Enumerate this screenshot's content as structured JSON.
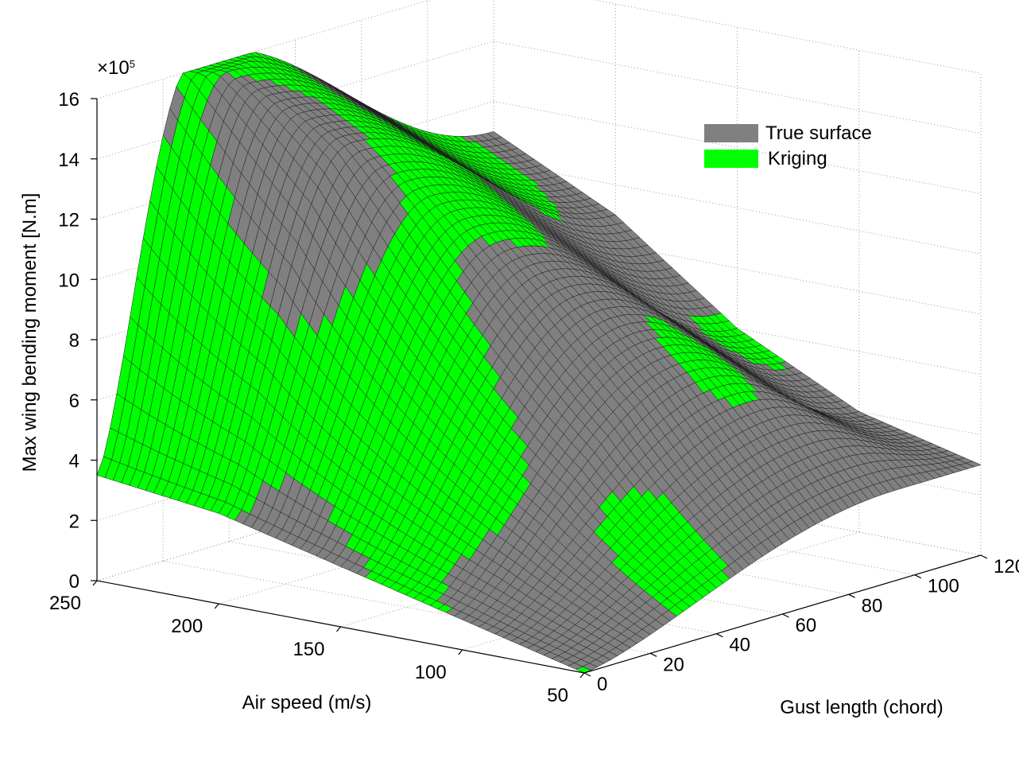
{
  "chart_data": {
    "type": "surface",
    "zlabel": "Max wing bending moment [N.m]",
    "xlabel": "Air speed (m/s)",
    "ylabel": "Gust length (chord)",
    "z_exponent_label": "×10",
    "z_exponent_power": "5",
    "x_ticks": [
      "250",
      "200",
      "150",
      "100",
      "50"
    ],
    "y_ticks": [
      "0",
      "20",
      "40",
      "60",
      "80",
      "100",
      "120"
    ],
    "z_ticks": [
      "0",
      "2",
      "4",
      "6",
      "8",
      "10",
      "12",
      "14",
      "16"
    ],
    "xlim": [
      50,
      250
    ],
    "ylim": [
      0,
      120
    ],
    "zlim": [
      0,
      1600000
    ],
    "grid": true,
    "legend_position": "top-right",
    "series": [
      {
        "name": "True surface",
        "color": "#808080"
      },
      {
        "name": "Kriging",
        "color": "#00ff00"
      }
    ],
    "surface_profile": {
      "description_points_speed": [
        50,
        100,
        150,
        200,
        250
      ],
      "peak_moment_by_speed": [
        300000,
        700000,
        1050000,
        1400000,
        1650000
      ],
      "peak_gust_length_by_speed": [
        95,
        70,
        55,
        40,
        30
      ],
      "moment_at_gust_0": [
        0,
        100000,
        200000,
        300000,
        350000
      ],
      "moment_at_gust_120": [
        300000,
        400000,
        600000,
        900000,
        1100000
      ]
    }
  }
}
